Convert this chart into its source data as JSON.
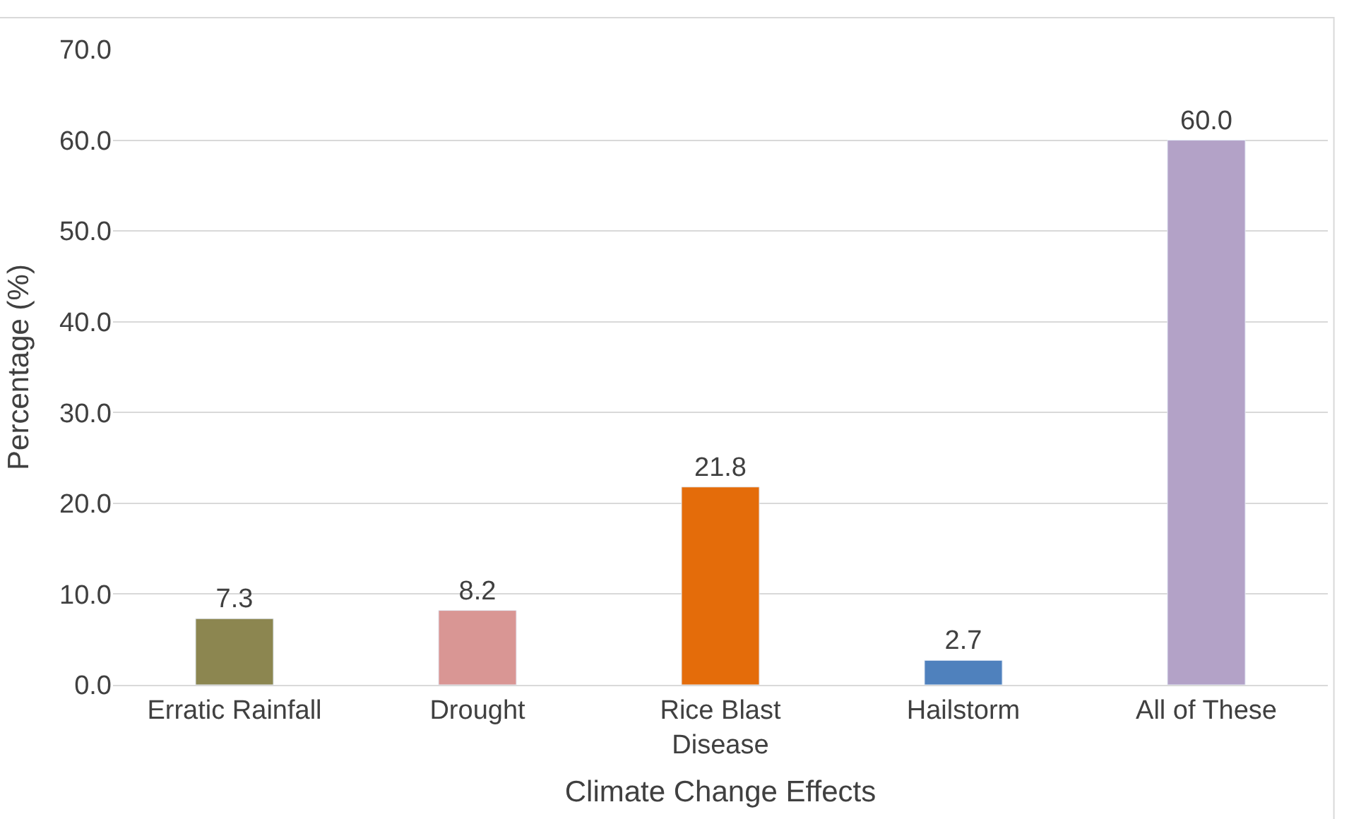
{
  "chart_data": {
    "type": "bar",
    "xlabel": "Climate Change Effects",
    "ylabel": "Percentage (%)",
    "categories": [
      "Erratic Rainfall",
      "Drought",
      "Rice Blast\nDisease",
      "Hailstorm",
      "All of These"
    ],
    "values": [
      7.3,
      8.2,
      21.8,
      2.7,
      60.0
    ],
    "value_labels": [
      "7.3",
      "8.2",
      "21.8",
      "2.7",
      "60.0"
    ],
    "colors": [
      "#8c8650",
      "#d99694",
      "#e46c0a",
      "#4f81bd",
      "#b3a2c7"
    ],
    "ylim": [
      0,
      70
    ],
    "yticks": [
      {
        "value": 0,
        "label": "0.0"
      },
      {
        "value": 10,
        "label": "10.0"
      },
      {
        "value": 20,
        "label": "20.0"
      },
      {
        "value": 30,
        "label": "30.0"
      },
      {
        "value": 40,
        "label": "40.0"
      },
      {
        "value": 50,
        "label": "50.0"
      },
      {
        "value": 60,
        "label": "60.0"
      },
      {
        "value": 70,
        "label": "70.0"
      }
    ],
    "grid": "y",
    "legend": false
  }
}
